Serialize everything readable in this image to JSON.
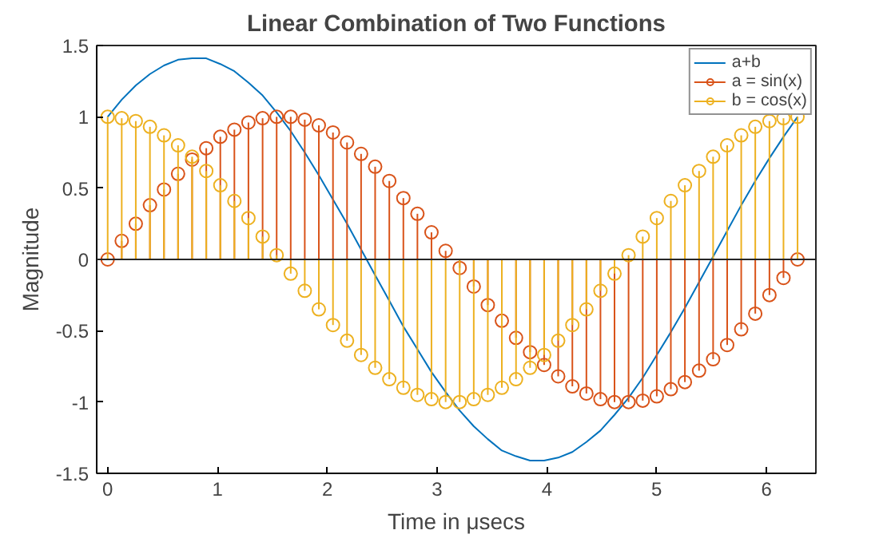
{
  "chart_data": {
    "type": "lollipop",
    "title": "Linear Combination of Two Functions",
    "xlabel": "Time in μsecs",
    "ylabel": "Magnitude",
    "x": [
      0,
      0.128,
      0.256,
      0.385,
      0.513,
      0.641,
      0.769,
      0.898,
      1.026,
      1.154,
      1.282,
      1.411,
      1.539,
      1.667,
      1.795,
      1.923,
      2.052,
      2.18,
      2.308,
      2.436,
      2.565,
      2.693,
      2.821,
      2.949,
      3.078,
      3.206,
      3.334,
      3.462,
      3.59,
      3.719,
      3.847,
      3.975,
      4.103,
      4.232,
      4.36,
      4.488,
      4.616,
      4.744,
      4.873,
      5.001,
      5.129,
      5.257,
      5.386,
      5.514,
      5.642,
      5.77,
      5.898,
      6.027,
      6.155,
      6.283
    ],
    "series": [
      {
        "name": "a+b",
        "type": "line",
        "color": "#0072bd",
        "marker": "none",
        "values": [
          1,
          1.12,
          1.22,
          1.3,
          1.36,
          1.4,
          1.41,
          1.41,
          1.37,
          1.32,
          1.24,
          1.15,
          1.03,
          0.9,
          0.75,
          0.59,
          0.42,
          0.25,
          0.07,
          -0.11,
          -0.29,
          -0.47,
          -0.63,
          -0.79,
          -0.93,
          -1.06,
          -1.17,
          -1.26,
          -1.34,
          -1.38,
          -1.41,
          -1.41,
          -1.39,
          -1.35,
          -1.28,
          -1.2,
          -1.09,
          -0.97,
          -0.83,
          -0.67,
          -0.51,
          -0.34,
          -0.16,
          0.02,
          0.2,
          0.38,
          0.55,
          0.71,
          0.86,
          1
        ]
      },
      {
        "name": "a = sin(x)",
        "color": "#d95319",
        "marker": "circle",
        "values": [
          0,
          0.13,
          0.25,
          0.38,
          0.49,
          0.6,
          0.7,
          0.78,
          0.86,
          0.91,
          0.96,
          0.99,
          1,
          1,
          0.98,
          0.94,
          0.89,
          0.82,
          0.74,
          0.65,
          0.55,
          0.43,
          0.32,
          0.19,
          0.06,
          -0.06,
          -0.19,
          -0.32,
          -0.43,
          -0.55,
          -0.65,
          -0.74,
          -0.82,
          -0.89,
          -0.94,
          -0.98,
          -1,
          -1,
          -0.99,
          -0.96,
          -0.91,
          -0.86,
          -0.78,
          -0.7,
          -0.6,
          -0.49,
          -0.38,
          -0.25,
          -0.13,
          0
        ]
      },
      {
        "name": "b = cos(x)",
        "color": "#edb120",
        "marker": "circle",
        "values": [
          1,
          0.99,
          0.97,
          0.93,
          0.87,
          0.8,
          0.72,
          0.62,
          0.52,
          0.41,
          0.29,
          0.16,
          0.03,
          -0.1,
          -0.22,
          -0.35,
          -0.46,
          -0.57,
          -0.67,
          -0.76,
          -0.84,
          -0.9,
          -0.95,
          -0.98,
          -1,
          -1,
          -0.98,
          -0.95,
          -0.9,
          -0.84,
          -0.76,
          -0.67,
          -0.57,
          -0.46,
          -0.35,
          -0.22,
          -0.1,
          0.03,
          0.16,
          0.29,
          0.41,
          0.52,
          0.62,
          0.72,
          0.8,
          0.87,
          0.93,
          0.97,
          0.99,
          1
        ]
      }
    ],
    "ref_lines": [
      {
        "axis": "y",
        "value": 0,
        "color": "#262626"
      }
    ],
    "xlim": [
      -0.1,
      6.45
    ],
    "xticks": [
      0,
      1,
      2,
      3,
      4,
      5,
      6
    ],
    "ylim": [
      -1.5,
      1.5
    ],
    "yticks": [
      -1.5,
      -1,
      -0.5,
      0,
      0.5,
      1,
      1.5
    ],
    "grid": false,
    "legend": "top right"
  }
}
